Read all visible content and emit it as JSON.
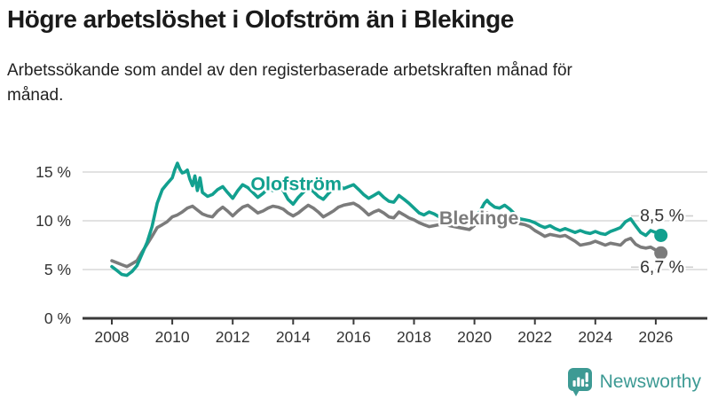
{
  "chart_data": {
    "type": "line",
    "title": "Högre arbetslöshet i Olofström än i Blekinge",
    "subtitle": "Arbetssökande som andel av den registerbaserade arbetskraften månad för månad.",
    "unit": "%",
    "x_ticks": [
      2008,
      2010,
      2012,
      2014,
      2016,
      2018,
      2020,
      2022,
      2024,
      2026
    ],
    "y_ticks": [
      {
        "value": 0,
        "label": "0 %"
      },
      {
        "value": 5,
        "label": "5 %"
      },
      {
        "value": 10,
        "label": "10 %"
      },
      {
        "value": 15,
        "label": "15 %"
      }
    ],
    "xlim": [
      2008,
      2026.6
    ],
    "ylim": [
      0,
      17
    ],
    "grid": "horizontal-light",
    "legend_position": "inline-labels",
    "colors": {
      "grid": "#d8d8d8",
      "axis": "#3a3a3a",
      "tick_text": "#333333",
      "annotation_text": "#333333",
      "leader_dash": "#cfcfcf"
    },
    "series": [
      {
        "name": "Blekinge",
        "color": "#7b7b7b",
        "end_value": 6.7,
        "end_label": "6,7 %",
        "end_label_side": "below",
        "name_label_pos": {
          "year": 2020.15,
          "value": 9.65
        },
        "points": [
          [
            2008.0,
            5.9
          ],
          [
            2008.17,
            5.7
          ],
          [
            2008.33,
            5.5
          ],
          [
            2008.5,
            5.3
          ],
          [
            2008.67,
            5.6
          ],
          [
            2008.83,
            5.9
          ],
          [
            2009.0,
            6.8
          ],
          [
            2009.17,
            7.6
          ],
          [
            2009.33,
            8.4
          ],
          [
            2009.5,
            9.3
          ],
          [
            2009.67,
            9.6
          ],
          [
            2009.83,
            9.9
          ],
          [
            2010.0,
            10.4
          ],
          [
            2010.17,
            10.6
          ],
          [
            2010.33,
            10.9
          ],
          [
            2010.5,
            11.3
          ],
          [
            2010.67,
            11.5
          ],
          [
            2010.83,
            11.1
          ],
          [
            2011.0,
            10.7
          ],
          [
            2011.17,
            10.5
          ],
          [
            2011.33,
            10.4
          ],
          [
            2011.5,
            11.0
          ],
          [
            2011.67,
            11.4
          ],
          [
            2011.83,
            11.0
          ],
          [
            2012.0,
            10.5
          ],
          [
            2012.17,
            11.0
          ],
          [
            2012.33,
            11.4
          ],
          [
            2012.5,
            11.6
          ],
          [
            2012.67,
            11.2
          ],
          [
            2012.83,
            10.8
          ],
          [
            2013.0,
            11.0
          ],
          [
            2013.17,
            11.3
          ],
          [
            2013.33,
            11.5
          ],
          [
            2013.5,
            11.4
          ],
          [
            2013.67,
            11.2
          ],
          [
            2013.83,
            10.8
          ],
          [
            2014.0,
            10.5
          ],
          [
            2014.17,
            10.8
          ],
          [
            2014.33,
            11.2
          ],
          [
            2014.5,
            11.6
          ],
          [
            2014.67,
            11.3
          ],
          [
            2014.83,
            10.9
          ],
          [
            2015.0,
            10.4
          ],
          [
            2015.17,
            10.7
          ],
          [
            2015.33,
            11.0
          ],
          [
            2015.5,
            11.4
          ],
          [
            2015.67,
            11.6
          ],
          [
            2015.83,
            11.7
          ],
          [
            2016.0,
            11.8
          ],
          [
            2016.17,
            11.5
          ],
          [
            2016.33,
            11.1
          ],
          [
            2016.5,
            10.6
          ],
          [
            2016.67,
            10.9
          ],
          [
            2016.83,
            11.1
          ],
          [
            2017.0,
            10.8
          ],
          [
            2017.17,
            10.4
          ],
          [
            2017.33,
            10.3
          ],
          [
            2017.5,
            10.9
          ],
          [
            2017.67,
            10.6
          ],
          [
            2017.83,
            10.3
          ],
          [
            2018.0,
            10.1
          ],
          [
            2018.17,
            9.8
          ],
          [
            2018.33,
            9.6
          ],
          [
            2018.5,
            9.4
          ],
          [
            2018.67,
            9.5
          ],
          [
            2018.83,
            9.6
          ],
          [
            2019.0,
            9.7
          ],
          [
            2019.17,
            9.5
          ],
          [
            2019.33,
            9.4
          ],
          [
            2019.5,
            9.3
          ],
          [
            2019.67,
            9.2
          ],
          [
            2019.83,
            9.1
          ],
          [
            2020.0,
            9.5
          ],
          [
            2020.17,
            10.0
          ],
          [
            2020.33,
            10.6
          ],
          [
            2020.42,
            10.8
          ],
          [
            2020.5,
            10.6
          ],
          [
            2020.67,
            10.3
          ],
          [
            2020.83,
            10.2
          ],
          [
            2021.0,
            10.4
          ],
          [
            2021.17,
            10.2
          ],
          [
            2021.33,
            10.0
          ],
          [
            2021.5,
            9.7
          ],
          [
            2021.67,
            9.6
          ],
          [
            2021.83,
            9.4
          ],
          [
            2022.0,
            9.0
          ],
          [
            2022.17,
            8.7
          ],
          [
            2022.33,
            8.4
          ],
          [
            2022.5,
            8.6
          ],
          [
            2022.67,
            8.5
          ],
          [
            2022.83,
            8.4
          ],
          [
            2023.0,
            8.5
          ],
          [
            2023.17,
            8.2
          ],
          [
            2023.33,
            7.9
          ],
          [
            2023.5,
            7.5
          ],
          [
            2023.67,
            7.6
          ],
          [
            2023.83,
            7.7
          ],
          [
            2024.0,
            7.9
          ],
          [
            2024.17,
            7.7
          ],
          [
            2024.33,
            7.5
          ],
          [
            2024.5,
            7.7
          ],
          [
            2024.67,
            7.6
          ],
          [
            2024.83,
            7.5
          ],
          [
            2025.0,
            8.0
          ],
          [
            2025.17,
            8.2
          ],
          [
            2025.33,
            7.6
          ],
          [
            2025.5,
            7.3
          ],
          [
            2025.67,
            7.2
          ],
          [
            2025.83,
            7.3
          ],
          [
            2026.0,
            7.0
          ],
          [
            2026.17,
            6.7
          ]
        ]
      },
      {
        "name": "Olofström",
        "color": "#12a08f",
        "end_value": 8.5,
        "end_label": "8,5 %",
        "end_label_side": "above",
        "name_label_pos": {
          "year": 2014.1,
          "value": 13.15
        },
        "points": [
          [
            2008.0,
            5.3
          ],
          [
            2008.17,
            4.9
          ],
          [
            2008.33,
            4.5
          ],
          [
            2008.5,
            4.4
          ],
          [
            2008.67,
            4.8
          ],
          [
            2008.83,
            5.4
          ],
          [
            2009.0,
            6.6
          ],
          [
            2009.17,
            7.8
          ],
          [
            2009.33,
            9.4
          ],
          [
            2009.5,
            11.8
          ],
          [
            2009.67,
            13.2
          ],
          [
            2009.83,
            13.8
          ],
          [
            2010.0,
            14.4
          ],
          [
            2010.08,
            15.2
          ],
          [
            2010.17,
            15.9
          ],
          [
            2010.25,
            15.3
          ],
          [
            2010.33,
            14.9
          ],
          [
            2010.42,
            15.0
          ],
          [
            2010.5,
            15.2
          ],
          [
            2010.58,
            14.3
          ],
          [
            2010.67,
            13.6
          ],
          [
            2010.75,
            14.6
          ],
          [
            2010.83,
            13.1
          ],
          [
            2010.92,
            14.4
          ],
          [
            2011.0,
            12.9
          ],
          [
            2011.17,
            12.5
          ],
          [
            2011.33,
            12.7
          ],
          [
            2011.5,
            13.2
          ],
          [
            2011.67,
            13.5
          ],
          [
            2011.83,
            12.9
          ],
          [
            2012.0,
            12.3
          ],
          [
            2012.17,
            13.1
          ],
          [
            2012.33,
            13.7
          ],
          [
            2012.5,
            13.4
          ],
          [
            2012.67,
            12.9
          ],
          [
            2012.83,
            12.4
          ],
          [
            2013.0,
            12.8
          ],
          [
            2013.17,
            13.3
          ],
          [
            2013.33,
            13.1
          ],
          [
            2013.5,
            13.6
          ],
          [
            2013.67,
            13.1
          ],
          [
            2013.83,
            12.2
          ],
          [
            2014.0,
            11.7
          ],
          [
            2014.17,
            12.4
          ],
          [
            2014.33,
            12.9
          ],
          [
            2014.5,
            13.4
          ],
          [
            2014.67,
            13.0
          ],
          [
            2014.83,
            12.5
          ],
          [
            2015.0,
            12.2
          ],
          [
            2015.17,
            12.8
          ],
          [
            2015.33,
            13.3
          ],
          [
            2015.5,
            13.7
          ],
          [
            2015.67,
            13.3
          ],
          [
            2015.83,
            13.5
          ],
          [
            2016.0,
            13.7
          ],
          [
            2016.17,
            13.2
          ],
          [
            2016.33,
            12.7
          ],
          [
            2016.5,
            12.3
          ],
          [
            2016.67,
            12.6
          ],
          [
            2016.83,
            12.9
          ],
          [
            2017.0,
            12.4
          ],
          [
            2017.17,
            12.0
          ],
          [
            2017.33,
            11.9
          ],
          [
            2017.5,
            12.6
          ],
          [
            2017.67,
            12.2
          ],
          [
            2017.83,
            11.8
          ],
          [
            2018.0,
            11.3
          ],
          [
            2018.17,
            10.8
          ],
          [
            2018.33,
            10.6
          ],
          [
            2018.5,
            10.9
          ],
          [
            2018.67,
            10.7
          ],
          [
            2018.83,
            10.4
          ],
          [
            2019.0,
            10.2
          ],
          [
            2019.17,
            10.4
          ],
          [
            2019.33,
            10.5
          ],
          [
            2019.5,
            10.1
          ],
          [
            2019.67,
            10.0
          ],
          [
            2019.83,
            9.9
          ],
          [
            2020.0,
            10.3
          ],
          [
            2020.17,
            10.9
          ],
          [
            2020.33,
            11.8
          ],
          [
            2020.42,
            12.1
          ],
          [
            2020.5,
            11.8
          ],
          [
            2020.67,
            11.4
          ],
          [
            2020.83,
            11.3
          ],
          [
            2021.0,
            11.6
          ],
          [
            2021.17,
            11.2
          ],
          [
            2021.33,
            10.7
          ],
          [
            2021.5,
            10.2
          ],
          [
            2021.67,
            10.1
          ],
          [
            2021.83,
            10.0
          ],
          [
            2022.0,
            9.8
          ],
          [
            2022.17,
            9.5
          ],
          [
            2022.33,
            9.3
          ],
          [
            2022.5,
            9.5
          ],
          [
            2022.67,
            9.2
          ],
          [
            2022.83,
            9.0
          ],
          [
            2023.0,
            9.2
          ],
          [
            2023.17,
            9.0
          ],
          [
            2023.33,
            8.8
          ],
          [
            2023.5,
            9.0
          ],
          [
            2023.67,
            8.8
          ],
          [
            2023.83,
            8.7
          ],
          [
            2024.0,
            8.9
          ],
          [
            2024.17,
            8.7
          ],
          [
            2024.33,
            8.6
          ],
          [
            2024.5,
            8.9
          ],
          [
            2024.67,
            9.1
          ],
          [
            2024.83,
            9.3
          ],
          [
            2025.0,
            9.9
          ],
          [
            2025.17,
            10.2
          ],
          [
            2025.33,
            9.5
          ],
          [
            2025.5,
            8.8
          ],
          [
            2025.67,
            8.5
          ],
          [
            2025.83,
            9.0
          ],
          [
            2026.0,
            8.8
          ],
          [
            2026.17,
            8.5
          ]
        ]
      }
    ]
  },
  "branding": {
    "name": "Newsworthy",
    "logo_icon": "bar-chart-speech-bubble-icon",
    "color": "#3d9a94"
  }
}
